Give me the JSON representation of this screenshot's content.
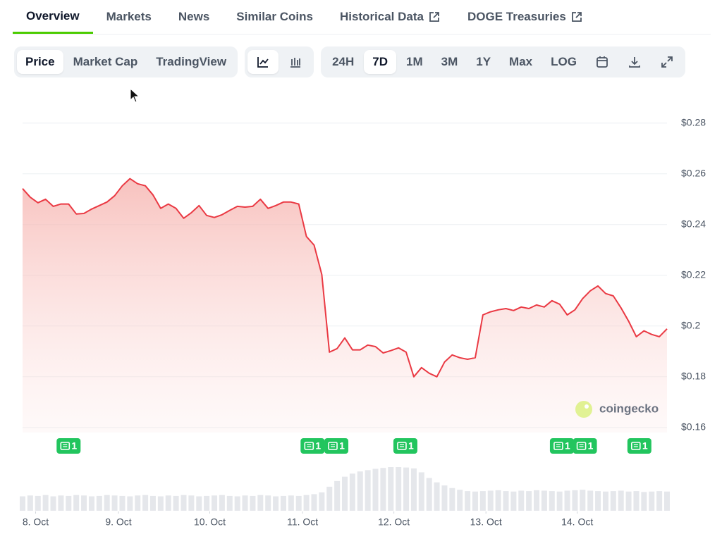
{
  "tabs": {
    "items": [
      "Overview",
      "Markets",
      "News",
      "Similar Coins",
      "Historical Data",
      "DOGE Treasuries"
    ],
    "active": 0,
    "external": [
      4,
      5
    ]
  },
  "toolbar": {
    "views": [
      "Price",
      "Market Cap",
      "TradingView"
    ],
    "active_view": 0,
    "ranges": [
      "24H",
      "7D",
      "1M",
      "3M",
      "1Y",
      "Max",
      "LOG"
    ],
    "active_range": 1
  },
  "watermark": "coingecko",
  "chart_data": {
    "type": "area",
    "values": [
      0.2542,
      0.2508,
      0.2486,
      0.25,
      0.2472,
      0.2481,
      0.2481,
      0.2442,
      0.2444,
      0.2461,
      0.2475,
      0.2489,
      0.2514,
      0.2553,
      0.2581,
      0.2561,
      0.2553,
      0.2517,
      0.2464,
      0.2481,
      0.2464,
      0.2425,
      0.2447,
      0.2475,
      0.2436,
      0.2428,
      0.2439,
      0.2456,
      0.2472,
      0.2469,
      0.2472,
      0.25,
      0.2464,
      0.2475,
      0.2489,
      0.2489,
      0.2481,
      0.2353,
      0.2319,
      0.2203,
      0.1897,
      0.1911,
      0.1953,
      0.1906,
      0.1906,
      0.1925,
      0.1919,
      0.1894,
      0.1903,
      0.1914,
      0.1897,
      0.18,
      0.1836,
      0.1814,
      0.18,
      0.1858,
      0.1886,
      0.1875,
      0.1869,
      0.1875,
      0.2044,
      0.2056,
      0.2064,
      0.2069,
      0.2061,
      0.2075,
      0.2069,
      0.2083,
      0.2075,
      0.21,
      0.2086,
      0.2044,
      0.2064,
      0.2108,
      0.2139,
      0.2158,
      0.2128,
      0.2119,
      0.2072,
      0.2019,
      0.1958,
      0.1981,
      0.1967,
      0.1958,
      0.1989
    ],
    "color": "#ea3943",
    "volume": [
      33,
      35,
      34,
      36,
      33,
      35,
      34,
      36,
      35,
      33,
      34,
      36,
      35,
      34,
      33,
      35,
      36,
      34,
      33,
      35,
      34,
      36,
      35,
      33,
      34,
      35,
      36,
      34,
      33,
      35,
      34,
      36,
      35,
      33,
      34,
      35,
      34,
      36,
      38,
      42,
      55,
      68,
      78,
      85,
      90,
      93,
      96,
      98,
      100,
      100,
      99,
      97,
      88,
      75,
      65,
      58,
      52,
      48,
      45,
      44,
      45,
      46,
      47,
      45,
      44,
      46,
      45,
      47,
      46,
      45,
      44,
      46,
      47,
      48,
      46,
      45,
      44,
      45,
      46,
      44,
      45,
      43,
      44,
      45,
      44
    ],
    "volume_color": "#e5e7eb",
    "xlim": [
      0,
      84
    ],
    "xticks": [
      {
        "value": 1.7,
        "label": "8. Oct"
      },
      {
        "value": 12.5,
        "label": "9. Oct"
      },
      {
        "value": 24.4,
        "label": "10. Oct"
      },
      {
        "value": 36.5,
        "label": "11. Oct"
      },
      {
        "value": 48.4,
        "label": "12. Oct"
      },
      {
        "value": 60.4,
        "label": "13. Oct"
      },
      {
        "value": 72.3,
        "label": "14. Oct"
      }
    ],
    "ylim": [
      0.158,
      0.283
    ],
    "yticks": [
      {
        "value": 0.16,
        "label": "$0.16"
      },
      {
        "value": 0.18,
        "label": "$0.18"
      },
      {
        "value": 0.2,
        "label": "$0.2"
      },
      {
        "value": 0.22,
        "label": "$0.22"
      },
      {
        "value": 0.24,
        "label": "$0.24"
      },
      {
        "value": 0.26,
        "label": "$0.26"
      },
      {
        "value": 0.28,
        "label": "$0.28"
      }
    ],
    "grid": true,
    "news_markers": [
      {
        "x": 6.0,
        "count": 1
      },
      {
        "x": 37.8,
        "count": 1
      },
      {
        "x": 40.9,
        "count": 1
      },
      {
        "x": 49.9,
        "count": 1
      },
      {
        "x": 70.3,
        "count": 1
      },
      {
        "x": 73.3,
        "count": 1
      },
      {
        "x": 80.4,
        "count": 1
      }
    ],
    "news_color": "#22c55e"
  }
}
